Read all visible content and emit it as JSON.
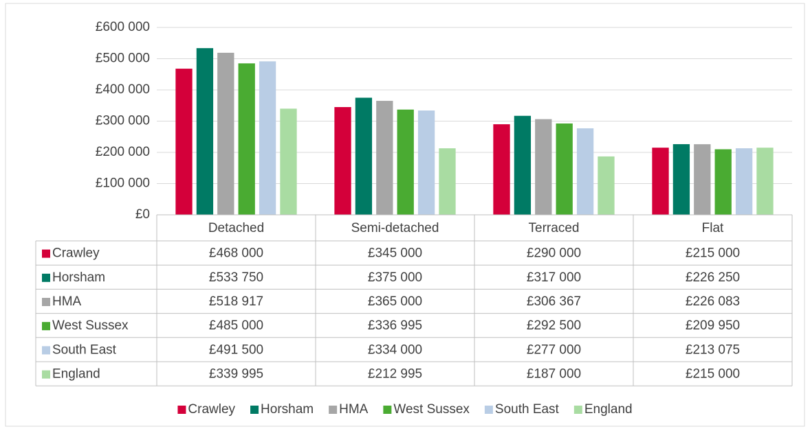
{
  "chart_data": {
    "type": "bar",
    "categories": [
      "Detached",
      "Semi-detached",
      "Terraced",
      "Flat"
    ],
    "series": [
      {
        "name": "Crawley",
        "color": "#d4003a",
        "values": [
          468000,
          345000,
          290000,
          215000
        ],
        "value_labels": [
          "£468 000",
          "£345 000",
          "£290 000",
          "£215 000"
        ]
      },
      {
        "name": "Horsham",
        "color": "#007a64",
        "values": [
          533750,
          375000,
          317000,
          226250
        ],
        "value_labels": [
          "£533 750",
          "£375 000",
          "£317 000",
          "£226 250"
        ]
      },
      {
        "name": "HMA",
        "color": "#a6a6a6",
        "values": [
          518917,
          365000,
          306367,
          226083
        ],
        "value_labels": [
          "£518 917",
          "£365 000",
          "£306 367",
          "£226 083"
        ]
      },
      {
        "name": "West Sussex",
        "color": "#4aab32",
        "values": [
          485000,
          336995,
          292500,
          209950
        ],
        "value_labels": [
          "£485 000",
          "£336 995",
          "£292 500",
          "£209 950"
        ]
      },
      {
        "name": "South East",
        "color": "#b9cde5",
        "values": [
          491500,
          334000,
          277000,
          213075
        ],
        "value_labels": [
          "£491 500",
          "£334 000",
          "£277 000",
          "£213 075"
        ]
      },
      {
        "name": "England",
        "color": "#a9dca2",
        "values": [
          339995,
          212995,
          187000,
          215000
        ],
        "value_labels": [
          "£339 995",
          "£212 995",
          "£187 000",
          "£215 000"
        ]
      }
    ],
    "ylim": [
      0,
      600000
    ],
    "yticks": [
      {
        "value": 0,
        "label": "£0"
      },
      {
        "value": 100000,
        "label": "£100 000"
      },
      {
        "value": 200000,
        "label": "£200 000"
      },
      {
        "value": 300000,
        "label": "£300 000"
      },
      {
        "value": 400000,
        "label": "£400 000"
      },
      {
        "value": 500000,
        "label": "£500 000"
      },
      {
        "value": 600000,
        "label": "£600 000"
      }
    ],
    "grid": true,
    "legend": "bottom"
  }
}
